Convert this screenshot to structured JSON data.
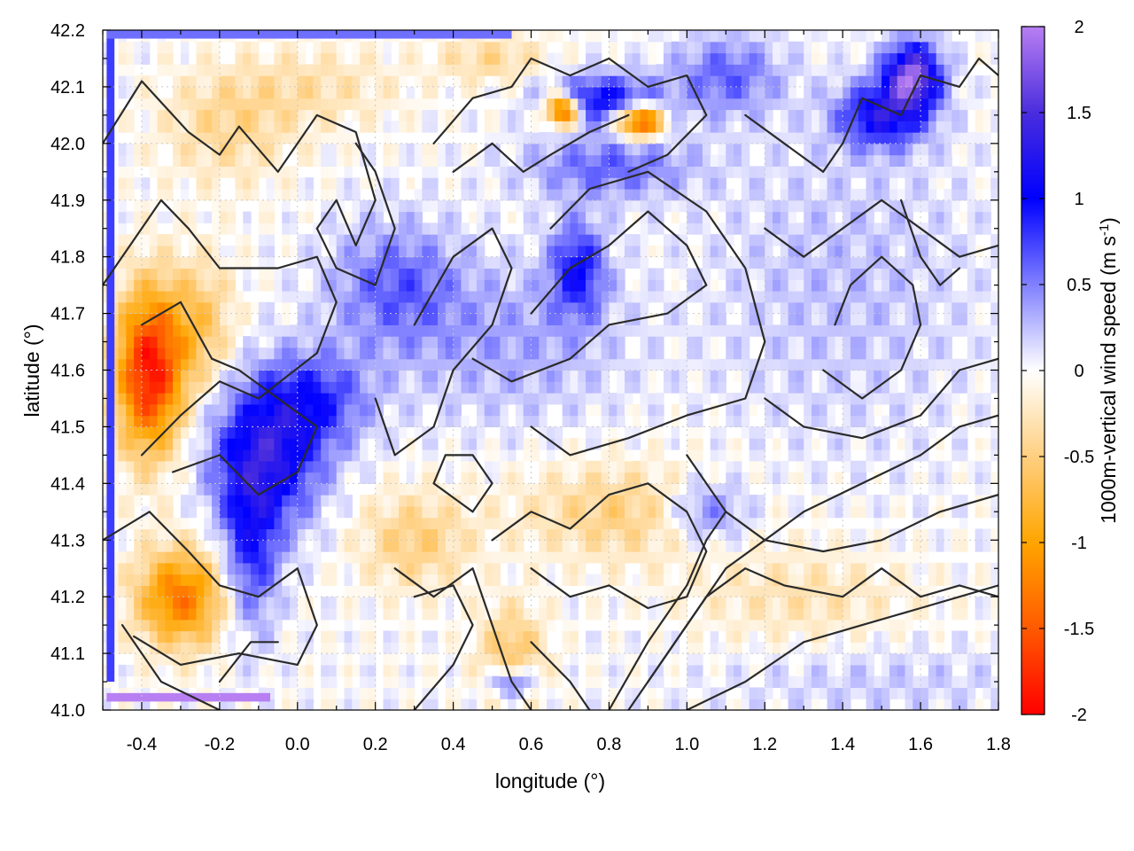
{
  "chart_data": {
    "type": "heatmap",
    "title": "",
    "xlabel": "longitude (°)",
    "ylabel": "latitude (°)",
    "colorbar_label": "1000m-vertical wind speed (m s",
    "colorbar_label_sup": "-1",
    "colorbar_label_end": ")",
    "xlim": [
      -0.5,
      1.8
    ],
    "ylim": [
      41.0,
      42.2
    ],
    "zlim": [
      -2,
      2
    ],
    "x_ticks": [
      "-0.4",
      "-0.2",
      "0.0",
      "0.2",
      "0.4",
      "0.6",
      "0.8",
      "1.0",
      "1.2",
      "1.4",
      "1.6",
      "1.8"
    ],
    "y_ticks": [
      "41.0",
      "41.1",
      "41.2",
      "41.3",
      "41.4",
      "41.5",
      "41.6",
      "41.7",
      "41.8",
      "41.9",
      "42.0",
      "42.1",
      "42.2"
    ],
    "colorbar_ticks": [
      "-2",
      "-1.5",
      "-1",
      "-0.5",
      "0",
      "0.5",
      "1",
      "1.5",
      "2"
    ],
    "grid": true,
    "colormap": [
      {
        "value": -2.0,
        "color": "#ff0000"
      },
      {
        "value": -1.5,
        "color": "#ff5a00"
      },
      {
        "value": -1.0,
        "color": "#ffa500"
      },
      {
        "value": -0.5,
        "color": "#ffcf80"
      },
      {
        "value": 0.0,
        "color": "#ffffff"
      },
      {
        "value": 0.5,
        "color": "#8080ff"
      },
      {
        "value": 1.0,
        "color": "#0000ff"
      },
      {
        "value": 1.5,
        "color": "#4a2ddd"
      },
      {
        "value": 2.0,
        "color": "#b87ff2"
      }
    ],
    "features": [
      {
        "lon": -0.38,
        "lat": 41.6,
        "value": -1.9,
        "sx": 0.06,
        "sy": 0.1
      },
      {
        "lon": -0.25,
        "lat": 41.68,
        "value": -0.6,
        "sx": 0.06,
        "sy": 0.08
      },
      {
        "lon": -0.3,
        "lat": 41.2,
        "value": -1.3,
        "sx": 0.08,
        "sy": 0.06
      },
      {
        "lon": -0.18,
        "lat": 42.03,
        "value": -0.4,
        "sx": 0.12,
        "sy": 0.07
      },
      {
        "lon": -0.08,
        "lat": 41.45,
        "value": 1.2,
        "sx": 0.1,
        "sy": 0.09
      },
      {
        "lon": -0.12,
        "lat": 41.28,
        "value": 0.8,
        "sx": 0.05,
        "sy": 0.1
      },
      {
        "lon": 0.05,
        "lat": 41.55,
        "value": 0.7,
        "sx": 0.1,
        "sy": 0.06
      },
      {
        "lon": 0.25,
        "lat": 41.75,
        "value": 0.6,
        "sx": 0.12,
        "sy": 0.08
      },
      {
        "lon": 0.72,
        "lat": 41.78,
        "value": 0.9,
        "sx": 0.05,
        "sy": 0.06
      },
      {
        "lon": 0.55,
        "lat": 41.65,
        "value": 0.35,
        "sx": 0.2,
        "sy": 0.1
      },
      {
        "lon": 0.68,
        "lat": 42.06,
        "value": -1.8,
        "sx": 0.03,
        "sy": 0.02
      },
      {
        "lon": 0.88,
        "lat": 42.04,
        "value": -1.8,
        "sx": 0.04,
        "sy": 0.02
      },
      {
        "lon": 0.78,
        "lat": 42.08,
        "value": 1.0,
        "sx": 0.1,
        "sy": 0.03
      },
      {
        "lon": 0.8,
        "lat": 41.96,
        "value": 0.6,
        "sx": 0.15,
        "sy": 0.04
      },
      {
        "lon": 1.58,
        "lat": 42.12,
        "value": 1.8,
        "sx": 0.05,
        "sy": 0.04
      },
      {
        "lon": 1.5,
        "lat": 42.05,
        "value": 1.1,
        "sx": 0.08,
        "sy": 0.04
      },
      {
        "lon": 1.1,
        "lat": 42.12,
        "value": 0.6,
        "sx": 0.1,
        "sy": 0.05
      },
      {
        "lon": 0.85,
        "lat": 41.35,
        "value": -0.5,
        "sx": 0.2,
        "sy": 0.06
      },
      {
        "lon": 0.55,
        "lat": 41.1,
        "value": -0.6,
        "sx": 0.06,
        "sy": 0.06
      },
      {
        "lon": 0.55,
        "lat": 41.05,
        "value": 0.9,
        "sx": 0.04,
        "sy": 0.02
      },
      {
        "lon": 1.05,
        "lat": 41.35,
        "value": 0.7,
        "sx": 0.08,
        "sy": 0.04
      },
      {
        "lon": 1.4,
        "lat": 41.75,
        "value": 0.25,
        "sx": 0.25,
        "sy": 0.2
      },
      {
        "lon": 0.3,
        "lat": 41.3,
        "value": -0.5,
        "sx": 0.1,
        "sy": 0.06
      },
      {
        "lon": 1.3,
        "lat": 41.2,
        "value": -0.3,
        "sx": 0.2,
        "sy": 0.06
      },
      {
        "lon": 1.5,
        "lat": 41.05,
        "value": 0.2,
        "sx": 0.3,
        "sy": 0.05
      },
      {
        "lon": 0.05,
        "lat": 42.1,
        "value": -0.3,
        "sx": 0.15,
        "sy": 0.05
      },
      {
        "lon": 0.5,
        "lat": 42.15,
        "value": -0.4,
        "sx": 0.1,
        "sy": 0.03
      }
    ],
    "contours": [
      [
        [
          -0.5,
          42.0
        ],
        [
          -0.4,
          42.11
        ],
        [
          -0.28,
          42.02
        ],
        [
          -0.2,
          41.98
        ],
        [
          -0.15,
          42.03
        ],
        [
          -0.05,
          41.95
        ],
        [
          0.05,
          42.05
        ],
        [
          0.15,
          42.02
        ],
        [
          0.2,
          41.9
        ],
        [
          0.15,
          41.82
        ],
        [
          0.1,
          41.9
        ],
        [
          0.05,
          41.85
        ]
      ],
      [
        [
          -0.5,
          41.75
        ],
        [
          -0.35,
          41.9
        ],
        [
          -0.28,
          41.85
        ],
        [
          -0.2,
          41.78
        ],
        [
          -0.05,
          41.78
        ],
        [
          0.05,
          41.8
        ],
        [
          0.1,
          41.72
        ],
        [
          0.05,
          41.63
        ],
        [
          -0.1,
          41.55
        ],
        [
          -0.2,
          41.58
        ],
        [
          -0.3,
          41.52
        ],
        [
          -0.4,
          41.45
        ]
      ],
      [
        [
          -0.4,
          41.68
        ],
        [
          -0.3,
          41.72
        ],
        [
          -0.22,
          41.62
        ],
        [
          -0.15,
          41.6
        ],
        [
          -0.05,
          41.55
        ],
        [
          0.05,
          41.5
        ],
        [
          0.0,
          41.42
        ],
        [
          -0.1,
          41.38
        ],
        [
          -0.2,
          41.45
        ],
        [
          -0.32,
          41.42
        ]
      ],
      [
        [
          -0.5,
          41.3
        ],
        [
          -0.38,
          41.35
        ],
        [
          -0.28,
          41.28
        ],
        [
          -0.2,
          41.22
        ],
        [
          -0.1,
          41.2
        ],
        [
          0.0,
          41.25
        ],
        [
          0.05,
          41.15
        ],
        [
          0.0,
          41.08
        ],
        [
          -0.15,
          41.1
        ],
        [
          -0.3,
          41.08
        ],
        [
          -0.42,
          41.13
        ]
      ],
      [
        [
          -0.45,
          41.15
        ],
        [
          -0.35,
          41.05
        ],
        [
          -0.2,
          41.0
        ]
      ],
      [
        [
          0.2,
          41.55
        ],
        [
          0.25,
          41.45
        ],
        [
          0.35,
          41.5
        ],
        [
          0.4,
          41.6
        ],
        [
          0.5,
          41.68
        ],
        [
          0.55,
          41.78
        ],
        [
          0.5,
          41.85
        ],
        [
          0.4,
          41.8
        ],
        [
          0.3,
          41.68
        ]
      ],
      [
        [
          0.45,
          41.62
        ],
        [
          0.55,
          41.58
        ],
        [
          0.7,
          41.62
        ],
        [
          0.8,
          41.68
        ],
        [
          0.95,
          41.7
        ],
        [
          1.05,
          41.75
        ],
        [
          1.0,
          41.82
        ],
        [
          0.9,
          41.88
        ],
        [
          0.8,
          41.82
        ],
        [
          0.7,
          41.78
        ],
        [
          0.6,
          41.7
        ]
      ],
      [
        [
          0.6,
          41.5
        ],
        [
          0.7,
          41.45
        ],
        [
          0.85,
          41.48
        ],
        [
          1.0,
          41.52
        ],
        [
          1.15,
          41.55
        ],
        [
          1.2,
          41.65
        ],
        [
          1.15,
          41.78
        ],
        [
          1.05,
          41.88
        ],
        [
          0.9,
          41.95
        ],
        [
          0.75,
          41.92
        ],
        [
          0.65,
          41.85
        ]
      ],
      [
        [
          0.35,
          42.0
        ],
        [
          0.45,
          42.08
        ],
        [
          0.55,
          42.1
        ],
        [
          0.6,
          42.15
        ],
        [
          0.7,
          42.12
        ],
        [
          0.8,
          42.15
        ],
        [
          0.9,
          42.1
        ],
        [
          1.0,
          42.12
        ],
        [
          1.05,
          42.05
        ],
        [
          0.95,
          41.98
        ],
        [
          0.85,
          41.95
        ]
      ],
      [
        [
          0.4,
          41.95
        ],
        [
          0.5,
          42.0
        ],
        [
          0.58,
          41.95
        ],
        [
          0.65,
          41.98
        ],
        [
          0.75,
          42.02
        ],
        [
          0.85,
          42.05
        ]
      ],
      [
        [
          1.15,
          42.05
        ],
        [
          1.25,
          42.0
        ],
        [
          1.35,
          41.95
        ],
        [
          1.4,
          42.0
        ],
        [
          1.45,
          42.08
        ],
        [
          1.55,
          42.05
        ],
        [
          1.6,
          42.12
        ],
        [
          1.7,
          42.1
        ],
        [
          1.75,
          42.15
        ],
        [
          1.8,
          42.12
        ]
      ],
      [
        [
          1.35,
          41.6
        ],
        [
          1.45,
          41.55
        ],
        [
          1.55,
          41.6
        ],
        [
          1.6,
          41.68
        ],
        [
          1.58,
          41.75
        ],
        [
          1.5,
          41.8
        ],
        [
          1.42,
          41.75
        ],
        [
          1.38,
          41.68
        ]
      ],
      [
        [
          1.0,
          41.45
        ],
        [
          1.1,
          41.35
        ],
        [
          1.2,
          41.3
        ],
        [
          1.35,
          41.28
        ],
        [
          1.5,
          41.3
        ],
        [
          1.65,
          41.35
        ],
        [
          1.8,
          41.38
        ]
      ],
      [
        [
          0.9,
          41.05
        ],
        [
          1.0,
          41.15
        ],
        [
          1.1,
          41.25
        ],
        [
          1.2,
          41.3
        ],
        [
          1.3,
          41.35
        ],
        [
          1.45,
          41.4
        ],
        [
          1.6,
          41.45
        ],
        [
          1.7,
          41.5
        ],
        [
          1.8,
          41.52
        ]
      ],
      [
        [
          0.85,
          41.0
        ],
        [
          0.95,
          41.1
        ],
        [
          1.05,
          41.2
        ],
        [
          1.15,
          41.25
        ],
        [
          1.25,
          41.22
        ],
        [
          1.4,
          41.2
        ],
        [
          1.5,
          41.25
        ],
        [
          1.6,
          41.2
        ],
        [
          1.7,
          41.22
        ],
        [
          1.8,
          41.2
        ]
      ],
      [
        [
          0.8,
          41.0
        ],
        [
          0.9,
          41.12
        ],
        [
          1.0,
          41.22
        ],
        [
          1.05,
          41.3
        ],
        [
          1.1,
          41.35
        ]
      ],
      [
        [
          0.5,
          41.3
        ],
        [
          0.6,
          41.35
        ],
        [
          0.7,
          41.32
        ],
        [
          0.8,
          41.38
        ],
        [
          0.9,
          41.4
        ],
        [
          1.0,
          41.35
        ],
        [
          1.05,
          41.28
        ],
        [
          1.0,
          41.2
        ],
        [
          0.9,
          41.18
        ],
        [
          0.8,
          41.22
        ],
        [
          0.7,
          41.2
        ],
        [
          0.6,
          41.25
        ]
      ],
      [
        [
          0.35,
          41.4
        ],
        [
          0.45,
          41.35
        ],
        [
          0.5,
          41.4
        ],
        [
          0.45,
          41.45
        ],
        [
          0.38,
          41.45
        ],
        [
          0.35,
          41.4
        ]
      ],
      [
        [
          0.25,
          41.25
        ],
        [
          0.35,
          41.2
        ],
        [
          0.45,
          41.25
        ],
        [
          0.5,
          41.15
        ],
        [
          0.55,
          41.05
        ],
        [
          0.6,
          41.0
        ]
      ],
      [
        [
          0.6,
          41.12
        ],
        [
          0.7,
          41.05
        ],
        [
          0.75,
          41.0
        ]
      ],
      [
        [
          0.3,
          41.0
        ],
        [
          0.4,
          41.08
        ],
        [
          0.45,
          41.15
        ],
        [
          0.4,
          41.22
        ],
        [
          0.3,
          41.2
        ]
      ],
      [
        [
          -0.2,
          41.05
        ],
        [
          -0.12,
          41.12
        ],
        [
          -0.05,
          41.12
        ]
      ],
      [
        [
          1.0,
          41.0
        ],
        [
          1.15,
          41.05
        ],
        [
          1.3,
          41.12
        ],
        [
          1.45,
          41.15
        ],
        [
          1.6,
          41.18
        ],
        [
          1.7,
          41.2
        ],
        [
          1.8,
          41.22
        ]
      ],
      [
        [
          0.05,
          41.85
        ],
        [
          0.1,
          41.78
        ],
        [
          0.2,
          41.75
        ],
        [
          0.25,
          41.85
        ],
        [
          0.2,
          41.95
        ],
        [
          0.15,
          42.0
        ]
      ],
      [
        [
          1.2,
          41.85
        ],
        [
          1.3,
          41.8
        ],
        [
          1.4,
          41.85
        ],
        [
          1.5,
          41.9
        ],
        [
          1.6,
          41.85
        ],
        [
          1.7,
          41.8
        ],
        [
          1.8,
          41.82
        ]
      ],
      [
        [
          1.2,
          41.55
        ],
        [
          1.3,
          41.5
        ],
        [
          1.45,
          41.48
        ],
        [
          1.6,
          41.52
        ],
        [
          1.7,
          41.6
        ],
        [
          1.8,
          41.62
        ]
      ],
      [
        [
          1.55,
          41.9
        ],
        [
          1.6,
          41.8
        ],
        [
          1.65,
          41.75
        ],
        [
          1.7,
          41.78
        ]
      ]
    ]
  }
}
